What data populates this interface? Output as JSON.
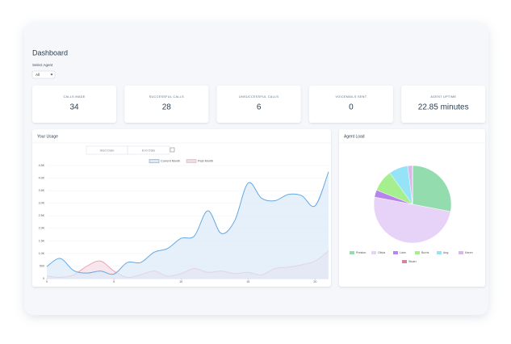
{
  "header": {
    "title": "Dashboard"
  },
  "select": {
    "label": "Select Agent",
    "value": "All"
  },
  "cards": [
    {
      "label": "CALLS MADE",
      "value": "34"
    },
    {
      "label": "SUCCESSFUL CALLS",
      "value": "28"
    },
    {
      "label": "UNSUCCESSFUL CALLS",
      "value": "6"
    },
    {
      "label": "VOICEMAILS SENT",
      "value": "0"
    },
    {
      "label": "AGENT UPTIME",
      "value": "22.85 minutes"
    }
  ],
  "date_inputs": [
    "Start Date",
    "End Date"
  ],
  "chart_data": [
    {
      "type": "line",
      "title": "Your Usage",
      "x": [
        0,
        1,
        2,
        3,
        4,
        5,
        6,
        7,
        8,
        9,
        10,
        11,
        12,
        13,
        14,
        15,
        16,
        17,
        18,
        19,
        20,
        21
      ],
      "xlim": [
        0,
        21
      ],
      "xticks": [
        0,
        5,
        10,
        15,
        20
      ],
      "ylim": [
        0,
        4500
      ],
      "yticks": [
        0,
        500,
        {
          "value": 1000,
          "label": "1.0K"
        },
        {
          "value": 1500,
          "label": "1.5K"
        },
        {
          "value": 2000,
          "label": "2.0K"
        },
        {
          "value": 2500,
          "label": "2.5K"
        },
        {
          "value": 3000,
          "label": "3.0K"
        },
        {
          "value": 3500,
          "label": "3.5K"
        },
        {
          "value": 4000,
          "label": "4.0K"
        },
        {
          "value": 4500,
          "label": "4.5K"
        }
      ],
      "grid": true,
      "series": [
        {
          "name": "Current Month",
          "color": "#62a8e5",
          "fill": "#dbeaf8",
          "values": [
            480,
            800,
            320,
            220,
            300,
            180,
            640,
            640,
            1050,
            1200,
            1600,
            1700,
            2700,
            1800,
            2300,
            3800,
            3200,
            3100,
            3350,
            3300,
            2900,
            4250
          ]
        },
        {
          "name": "Past Month",
          "color": "#f2a3b3",
          "fill": "#f3dbe6",
          "values": [
            100,
            50,
            150,
            500,
            700,
            300,
            50,
            150,
            300,
            100,
            200,
            400,
            250,
            300,
            200,
            250,
            150,
            400,
            450,
            550,
            700,
            1100
          ]
        }
      ]
    },
    {
      "type": "pie",
      "title": "Agent Load",
      "categories": [
        "Preston",
        "Olivia",
        "Liam",
        "Burris",
        "Ang",
        "Karen",
        "Stuart"
      ],
      "values": [
        28,
        50,
        3,
        9,
        8,
        2,
        0
      ],
      "colors": [
        "#93dcae",
        "#e6d3f7",
        "#b983ee",
        "#a6ef8e",
        "#95e3f6",
        "#d9b7ea",
        "#d4849f"
      ]
    }
  ]
}
